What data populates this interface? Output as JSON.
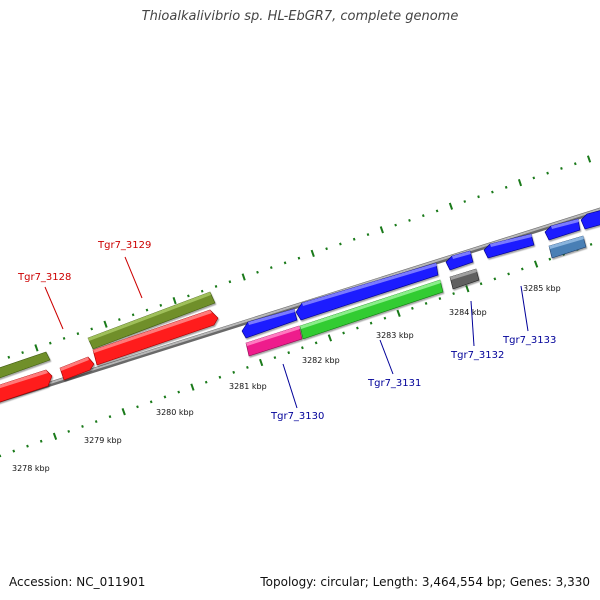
{
  "title": "Thioalkalivibrio sp. HL-EbGR7, complete genome",
  "footer": {
    "accession": "Accession: NC_011901",
    "summary": "Topology: circular; Length: 3,464,554 bp; Genes: 3,330"
  },
  "scale_ticks": [
    {
      "label": "3278 kbp"
    },
    {
      "label": "3279 kbp"
    },
    {
      "label": "3280 kbp"
    },
    {
      "label": "3281 kbp"
    },
    {
      "label": "3282 kbp"
    },
    {
      "label": "3283 kbp"
    },
    {
      "label": "3284 kbp"
    },
    {
      "label": "3285 kbp"
    }
  ],
  "gene_labels": [
    {
      "text": "Tgr7_3128",
      "color": "#cc0000"
    },
    {
      "text": "Tgr7_3129",
      "color": "#cc0000"
    },
    {
      "text": "Tgr7_3130",
      "color": "#000099"
    },
    {
      "text": "Tgr7_3131",
      "color": "#000099"
    },
    {
      "text": "Tgr7_3132",
      "color": "#000099"
    },
    {
      "text": "Tgr7_3133",
      "color": "#000099"
    }
  ],
  "colors": {
    "red_gene": "#ff1a1a",
    "olive_gene": "#6f8f2a",
    "blue_gene": "#1a1aff",
    "green_gene": "#33cc33",
    "magenta_gene": "#ee1c8c",
    "gray_gene": "#606060",
    "steel_gene": "#4a7fb5",
    "backbone": "#8a8a8a",
    "tick_green": "#1a7a1a"
  }
}
